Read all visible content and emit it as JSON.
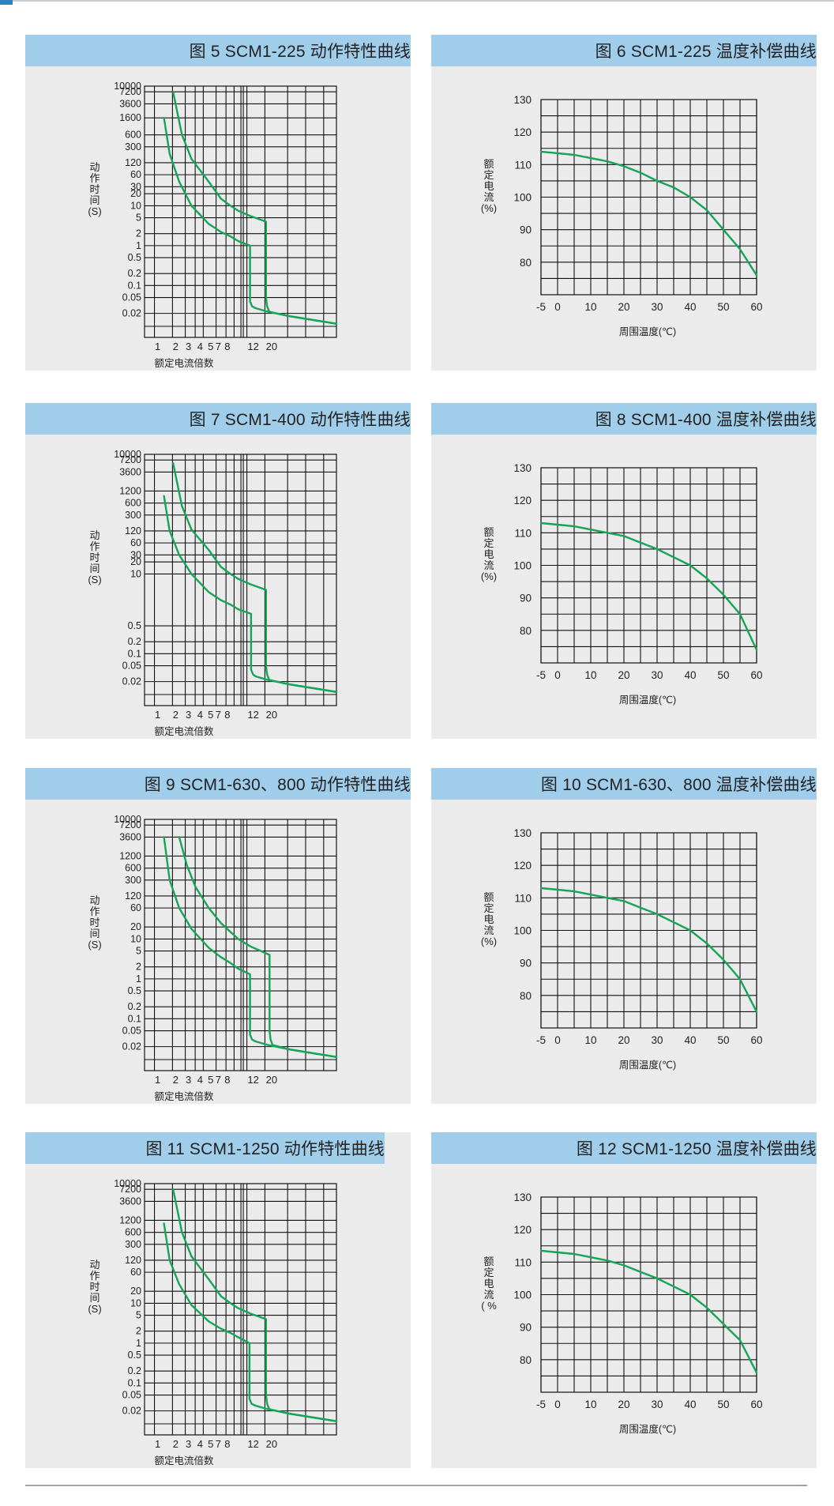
{
  "colors": {
    "header_bar": "#9fcdea",
    "panel_bg": "#ebebec",
    "curve": "#14a555",
    "accent": "#2d84c4"
  },
  "chart_data": [
    {
      "type": "line",
      "title": "图 5 SCM1-225 动作特性曲线",
      "xlabel": "额定电流倍数",
      "ylabel": "动作时间(S)",
      "x_ticks": [
        "1",
        "2",
        "3",
        "4",
        "5",
        "7",
        "8",
        "12",
        "20"
      ],
      "y_ticks": [
        "10000",
        "7200",
        "3600",
        "1600",
        "600",
        "300",
        "120",
        "60",
        "30",
        "20",
        "10",
        "5",
        "2",
        "1",
        "0.5",
        "0.2",
        "0.1",
        "0.05",
        "0.02"
      ],
      "series": [
        {
          "x": [
            1.05,
            1.2,
            1.5,
            2,
            3,
            4,
            5,
            6,
            7.9,
            7.9,
            8.3,
            9,
            12,
            20,
            60
          ],
          "y": [
            1600,
            200,
            40,
            10,
            3.5,
            2.2,
            1.7,
            1.3,
            1.0,
            0.04,
            0.03,
            0.027,
            0.022,
            0.017,
            0.011
          ]
        },
        {
          "x": [
            1.3,
            1.6,
            2,
            3,
            4,
            5,
            6,
            8,
            11.5,
            11.5,
            11.8,
            12.4,
            20,
            60
          ],
          "y": [
            7200,
            600,
            150,
            40,
            15,
            10,
            7.5,
            5.5,
            4,
            0.05,
            0.03,
            0.022,
            0.017,
            0.011
          ]
        }
      ]
    },
    {
      "type": "line",
      "title": "图 6 SCM1-225 温度补偿曲线",
      "xlabel": "周围温度(℃)",
      "ylabel": "额定电流(%)",
      "x_ticks": [
        "-5",
        "0",
        "10",
        "20",
        "30",
        "40",
        "50",
        "60"
      ],
      "y_ticks": [
        "130",
        "120",
        "110",
        "100",
        "90",
        "80"
      ],
      "xlim": [
        -5,
        60
      ],
      "ylim": [
        70,
        130
      ],
      "series": [
        {
          "x": [
            -5,
            0,
            5,
            10,
            15,
            20,
            25,
            30,
            35,
            40,
            45,
            50,
            55,
            60
          ],
          "y": [
            114,
            113.5,
            113,
            112,
            111,
            109.5,
            107.5,
            105,
            103,
            100,
            96,
            90,
            84,
            76
          ]
        }
      ]
    },
    {
      "type": "line",
      "title": "图 7 SCM1-400 动作特性曲线",
      "xlabel": "额定电流倍数",
      "ylabel": "动作时间(S)",
      "x_ticks": [
        "1",
        "2",
        "3",
        "4",
        "5",
        "7",
        "8",
        "12",
        "20"
      ],
      "y_ticks": [
        "10000",
        "7200",
        "3600",
        "1200",
        "600",
        "300",
        "120",
        "60",
        "30",
        "20",
        "10",
        "0.5",
        "0.2",
        "0.1",
        "0.05",
        "0.02"
      ],
      "series": [
        {
          "x": [
            1.05,
            1.2,
            1.5,
            2,
            3,
            4,
            5,
            6,
            8.1,
            8.1,
            8.5,
            9,
            12,
            20,
            60
          ],
          "y": [
            900,
            120,
            30,
            10,
            3.5,
            2.2,
            1.7,
            1.3,
            1.0,
            0.04,
            0.03,
            0.027,
            0.022,
            0.017,
            0.011
          ]
        },
        {
          "x": [
            1.3,
            1.6,
            2,
            3,
            4,
            5,
            6,
            8,
            11.5,
            11.5,
            11.8,
            12.4,
            20,
            60
          ],
          "y": [
            6000,
            500,
            130,
            40,
            15,
            10,
            7.5,
            5.5,
            4,
            0.05,
            0.03,
            0.022,
            0.017,
            0.011
          ]
        }
      ]
    },
    {
      "type": "line",
      "title": "图 8 SCM1-400 温度补偿曲线",
      "xlabel": "周围温度(℃)",
      "ylabel": "额定电流(%)",
      "x_ticks": [
        "-5",
        "0",
        "10",
        "20",
        "30",
        "40",
        "50",
        "60"
      ],
      "y_ticks": [
        "130",
        "120",
        "110",
        "100",
        "90",
        "80"
      ],
      "xlim": [
        -5,
        60
      ],
      "ylim": [
        70,
        130
      ],
      "series": [
        {
          "x": [
            -5,
            0,
            5,
            10,
            15,
            20,
            25,
            30,
            35,
            40,
            45,
            50,
            55,
            60
          ],
          "y": [
            113,
            112.5,
            112,
            111,
            110,
            109,
            107,
            105,
            102.5,
            100,
            96,
            91,
            85,
            74
          ]
        }
      ]
    },
    {
      "type": "line",
      "title": "图 9 SCM1-630、800 动作特性曲线",
      "xlabel": "额定电流倍数",
      "ylabel": "动作时间(S)",
      "x_ticks": [
        "1",
        "2",
        "3",
        "4",
        "5",
        "7",
        "8",
        "12",
        "20"
      ],
      "y_ticks": [
        "10000",
        "7200",
        "3600",
        "1200",
        "600",
        "300",
        "120",
        "60",
        "20",
        "10",
        "5",
        "2",
        "1",
        "0.5",
        "0.2",
        "0.1",
        "0.05",
        "0.02"
      ],
      "series": [
        {
          "x": [
            1.05,
            1.2,
            1.5,
            2,
            3,
            4,
            5,
            6,
            7.9,
            7.9,
            8.3,
            9,
            12,
            20,
            60
          ],
          "y": [
            3600,
            300,
            60,
            18,
            6,
            3.5,
            2.5,
            1.8,
            1.3,
            0.04,
            0.03,
            0.027,
            0.022,
            0.017,
            0.011
          ]
        },
        {
          "x": [
            1.5,
            1.8,
            2.2,
            3,
            4,
            5,
            6,
            8,
            12.5,
            12.5,
            12.8,
            13.4,
            20,
            60
          ],
          "y": [
            3600,
            700,
            200,
            60,
            25,
            15,
            10,
            6.5,
            4,
            0.05,
            0.03,
            0.022,
            0.017,
            0.011
          ]
        }
      ]
    },
    {
      "type": "line",
      "title": "图 10 SCM1-630、800 温度补偿曲线",
      "xlabel": "周围温度(℃)",
      "ylabel": "额定电流(%)",
      "x_ticks": [
        "-5",
        "0",
        "10",
        "20",
        "30",
        "40",
        "50",
        "60"
      ],
      "y_ticks": [
        "130",
        "120",
        "110",
        "100",
        "90",
        "80"
      ],
      "xlim": [
        -5,
        60
      ],
      "ylim": [
        70,
        130
      ],
      "series": [
        {
          "x": [
            -5,
            0,
            5,
            10,
            15,
            20,
            25,
            30,
            35,
            40,
            45,
            50,
            55,
            60
          ],
          "y": [
            113,
            112.5,
            112,
            111,
            110,
            109,
            107,
            105,
            102.5,
            100,
            96,
            91,
            85,
            75
          ]
        }
      ]
    },
    {
      "type": "line",
      "title": "图 11 SCM1-1250 动作特性曲线",
      "xlabel": "额定电流倍数",
      "ylabel": "动作时间(S)",
      "x_ticks": [
        "1",
        "2",
        "3",
        "4",
        "5",
        "7",
        "8",
        "12",
        "20"
      ],
      "y_ticks": [
        "10000",
        "7200",
        "3600",
        "1200",
        "600",
        "300",
        "120",
        "60",
        "20",
        "10",
        "5",
        "2",
        "1",
        "0.5",
        "0.2",
        "0.1",
        "0.05",
        "0.02"
      ],
      "series": [
        {
          "x": [
            1.05,
            1.2,
            1.5,
            2,
            3,
            4,
            5,
            6,
            7.8,
            7.8,
            8.2,
            9,
            12,
            20,
            60
          ],
          "y": [
            1000,
            120,
            30,
            9,
            3.5,
            2.3,
            1.8,
            1.4,
            1.0,
            0.04,
            0.03,
            0.027,
            0.022,
            0.017,
            0.011
          ]
        },
        {
          "x": [
            1.3,
            1.6,
            2,
            3,
            4,
            5,
            6,
            8,
            11.5,
            11.5,
            11.8,
            12.4,
            20,
            60
          ],
          "y": [
            7200,
            600,
            150,
            40,
            15,
            10,
            7.5,
            5.5,
            4,
            0.05,
            0.03,
            0.022,
            0.017,
            0.011
          ]
        }
      ]
    },
    {
      "type": "line",
      "title": "图 12 SCM1-1250 温度补偿曲线",
      "xlabel": "周围温度(℃)",
      "ylabel": "额定电流( %",
      "x_ticks": [
        "-5",
        "0",
        "10",
        "20",
        "30",
        "40",
        "50",
        "60"
      ],
      "y_ticks": [
        "130",
        "120",
        "110",
        "100",
        "90",
        "80"
      ],
      "xlim": [
        -5,
        60
      ],
      "ylim": [
        70,
        130
      ],
      "series": [
        {
          "x": [
            -5,
            0,
            5,
            10,
            15,
            20,
            25,
            30,
            35,
            40,
            45,
            50,
            55,
            60
          ],
          "y": [
            113.5,
            113,
            112.5,
            111.5,
            110.5,
            109,
            107,
            105,
            102.5,
            100,
            96,
            91,
            86,
            76
          ]
        }
      ]
    }
  ]
}
